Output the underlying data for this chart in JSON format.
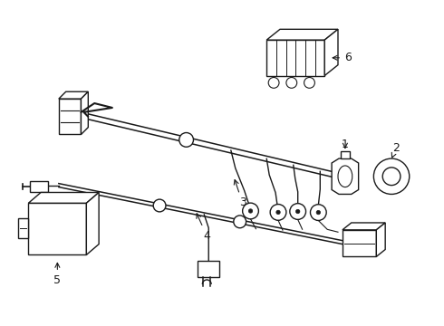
{
  "bg_color": "#ffffff",
  "line_color": "#1a1a1a",
  "lw": 1.0,
  "fig_width": 4.9,
  "fig_height": 3.6,
  "dpi": 100
}
